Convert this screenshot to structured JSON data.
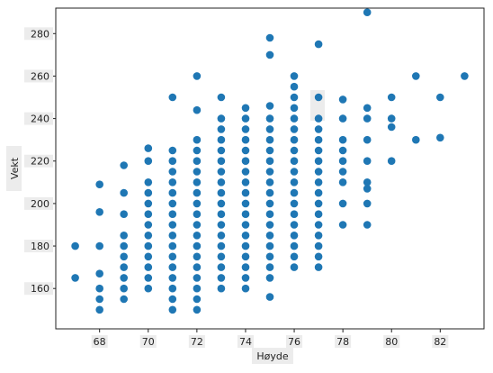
{
  "chart_data": {
    "type": "scatter",
    "title": "",
    "xlabel": "Høyde",
    "ylabel": "Vekt",
    "xlim": [
      66.2,
      83.8
    ],
    "ylim": [
      141,
      292
    ],
    "xticks": [
      68,
      70,
      72,
      74,
      76,
      78,
      80,
      82
    ],
    "yticks": [
      160,
      180,
      200,
      220,
      240,
      260,
      280
    ],
    "grid": false,
    "color": "#1f77b4",
    "points": [
      [
        67,
        180
      ],
      [
        67,
        165
      ],
      [
        68,
        209
      ],
      [
        68,
        196
      ],
      [
        68,
        180
      ],
      [
        68,
        167
      ],
      [
        68,
        160
      ],
      [
        68,
        155
      ],
      [
        68,
        150
      ],
      [
        69,
        218
      ],
      [
        69,
        205
      ],
      [
        69,
        195
      ],
      [
        69,
        185
      ],
      [
        69,
        180
      ],
      [
        69,
        175
      ],
      [
        69,
        170
      ],
      [
        69,
        165
      ],
      [
        69,
        160
      ],
      [
        69,
        155
      ],
      [
        70,
        226
      ],
      [
        70,
        220
      ],
      [
        70,
        210
      ],
      [
        70,
        205
      ],
      [
        70,
        200
      ],
      [
        70,
        195
      ],
      [
        70,
        190
      ],
      [
        70,
        185
      ],
      [
        70,
        180
      ],
      [
        70,
        175
      ],
      [
        70,
        170
      ],
      [
        70,
        165
      ],
      [
        70,
        160
      ],
      [
        71,
        250
      ],
      [
        71,
        225
      ],
      [
        71,
        220
      ],
      [
        71,
        215
      ],
      [
        71,
        210
      ],
      [
        71,
        205
      ],
      [
        71,
        200
      ],
      [
        71,
        195
      ],
      [
        71,
        190
      ],
      [
        71,
        185
      ],
      [
        71,
        180
      ],
      [
        71,
        175
      ],
      [
        71,
        170
      ],
      [
        71,
        165
      ],
      [
        71,
        160
      ],
      [
        71,
        155
      ],
      [
        71,
        150
      ],
      [
        72,
        260
      ],
      [
        72,
        244
      ],
      [
        72,
        230
      ],
      [
        72,
        225
      ],
      [
        72,
        220
      ],
      [
        72,
        215
      ],
      [
        72,
        210
      ],
      [
        72,
        205
      ],
      [
        72,
        200
      ],
      [
        72,
        195
      ],
      [
        72,
        190
      ],
      [
        72,
        185
      ],
      [
        72,
        180
      ],
      [
        72,
        175
      ],
      [
        72,
        170
      ],
      [
        72,
        165
      ],
      [
        72,
        160
      ],
      [
        72,
        155
      ],
      [
        72,
        150
      ],
      [
        73,
        250
      ],
      [
        73,
        240
      ],
      [
        73,
        235
      ],
      [
        73,
        230
      ],
      [
        73,
        225
      ],
      [
        73,
        220
      ],
      [
        73,
        215
      ],
      [
        73,
        210
      ],
      [
        73,
        205
      ],
      [
        73,
        200
      ],
      [
        73,
        195
      ],
      [
        73,
        190
      ],
      [
        73,
        185
      ],
      [
        73,
        180
      ],
      [
        73,
        175
      ],
      [
        73,
        170
      ],
      [
        73,
        165
      ],
      [
        73,
        160
      ],
      [
        74,
        245
      ],
      [
        74,
        240
      ],
      [
        74,
        235
      ],
      [
        74,
        230
      ],
      [
        74,
        225
      ],
      [
        74,
        220
      ],
      [
        74,
        215
      ],
      [
        74,
        210
      ],
      [
        74,
        205
      ],
      [
        74,
        200
      ],
      [
        74,
        195
      ],
      [
        74,
        190
      ],
      [
        74,
        185
      ],
      [
        74,
        180
      ],
      [
        74,
        175
      ],
      [
        74,
        170
      ],
      [
        74,
        165
      ],
      [
        74,
        160
      ],
      [
        75,
        278
      ],
      [
        75,
        270
      ],
      [
        75,
        246
      ],
      [
        75,
        240
      ],
      [
        75,
        235
      ],
      [
        75,
        230
      ],
      [
        75,
        225
      ],
      [
        75,
        220
      ],
      [
        75,
        215
      ],
      [
        75,
        210
      ],
      [
        75,
        205
      ],
      [
        75,
        200
      ],
      [
        75,
        195
      ],
      [
        75,
        190
      ],
      [
        75,
        185
      ],
      [
        75,
        180
      ],
      [
        75,
        175
      ],
      [
        75,
        170
      ],
      [
        75,
        165
      ],
      [
        75,
        156
      ],
      [
        76,
        260
      ],
      [
        76,
        255
      ],
      [
        76,
        250
      ],
      [
        76,
        245
      ],
      [
        76,
        240
      ],
      [
        76,
        235
      ],
      [
        76,
        230
      ],
      [
        76,
        225
      ],
      [
        76,
        220
      ],
      [
        76,
        215
      ],
      [
        76,
        210
      ],
      [
        76,
        205
      ],
      [
        76,
        200
      ],
      [
        76,
        195
      ],
      [
        76,
        190
      ],
      [
        76,
        185
      ],
      [
        76,
        180
      ],
      [
        76,
        175
      ],
      [
        76,
        170
      ],
      [
        77,
        275
      ],
      [
        77,
        250
      ],
      [
        77,
        240
      ],
      [
        77,
        235
      ],
      [
        77,
        230
      ],
      [
        77,
        225
      ],
      [
        77,
        220
      ],
      [
        77,
        215
      ],
      [
        77,
        210
      ],
      [
        77,
        205
      ],
      [
        77,
        200
      ],
      [
        77,
        195
      ],
      [
        77,
        190
      ],
      [
        77,
        185
      ],
      [
        77,
        180
      ],
      [
        77,
        175
      ],
      [
        77,
        170
      ],
      [
        78,
        249
      ],
      [
        78,
        240
      ],
      [
        78,
        230
      ],
      [
        78,
        225
      ],
      [
        78,
        220
      ],
      [
        78,
        215
      ],
      [
        78,
        210
      ],
      [
        78,
        200
      ],
      [
        78,
        190
      ],
      [
        79,
        290
      ],
      [
        79,
        245
      ],
      [
        79,
        240
      ],
      [
        79,
        230
      ],
      [
        79,
        220
      ],
      [
        79,
        210
      ],
      [
        79,
        207
      ],
      [
        79,
        200
      ],
      [
        79,
        190
      ],
      [
        80,
        250
      ],
      [
        80,
        240
      ],
      [
        80,
        236
      ],
      [
        80,
        220
      ],
      [
        81,
        260
      ],
      [
        81,
        230
      ],
      [
        82,
        250
      ],
      [
        82,
        231
      ],
      [
        83,
        260
      ]
    ]
  }
}
